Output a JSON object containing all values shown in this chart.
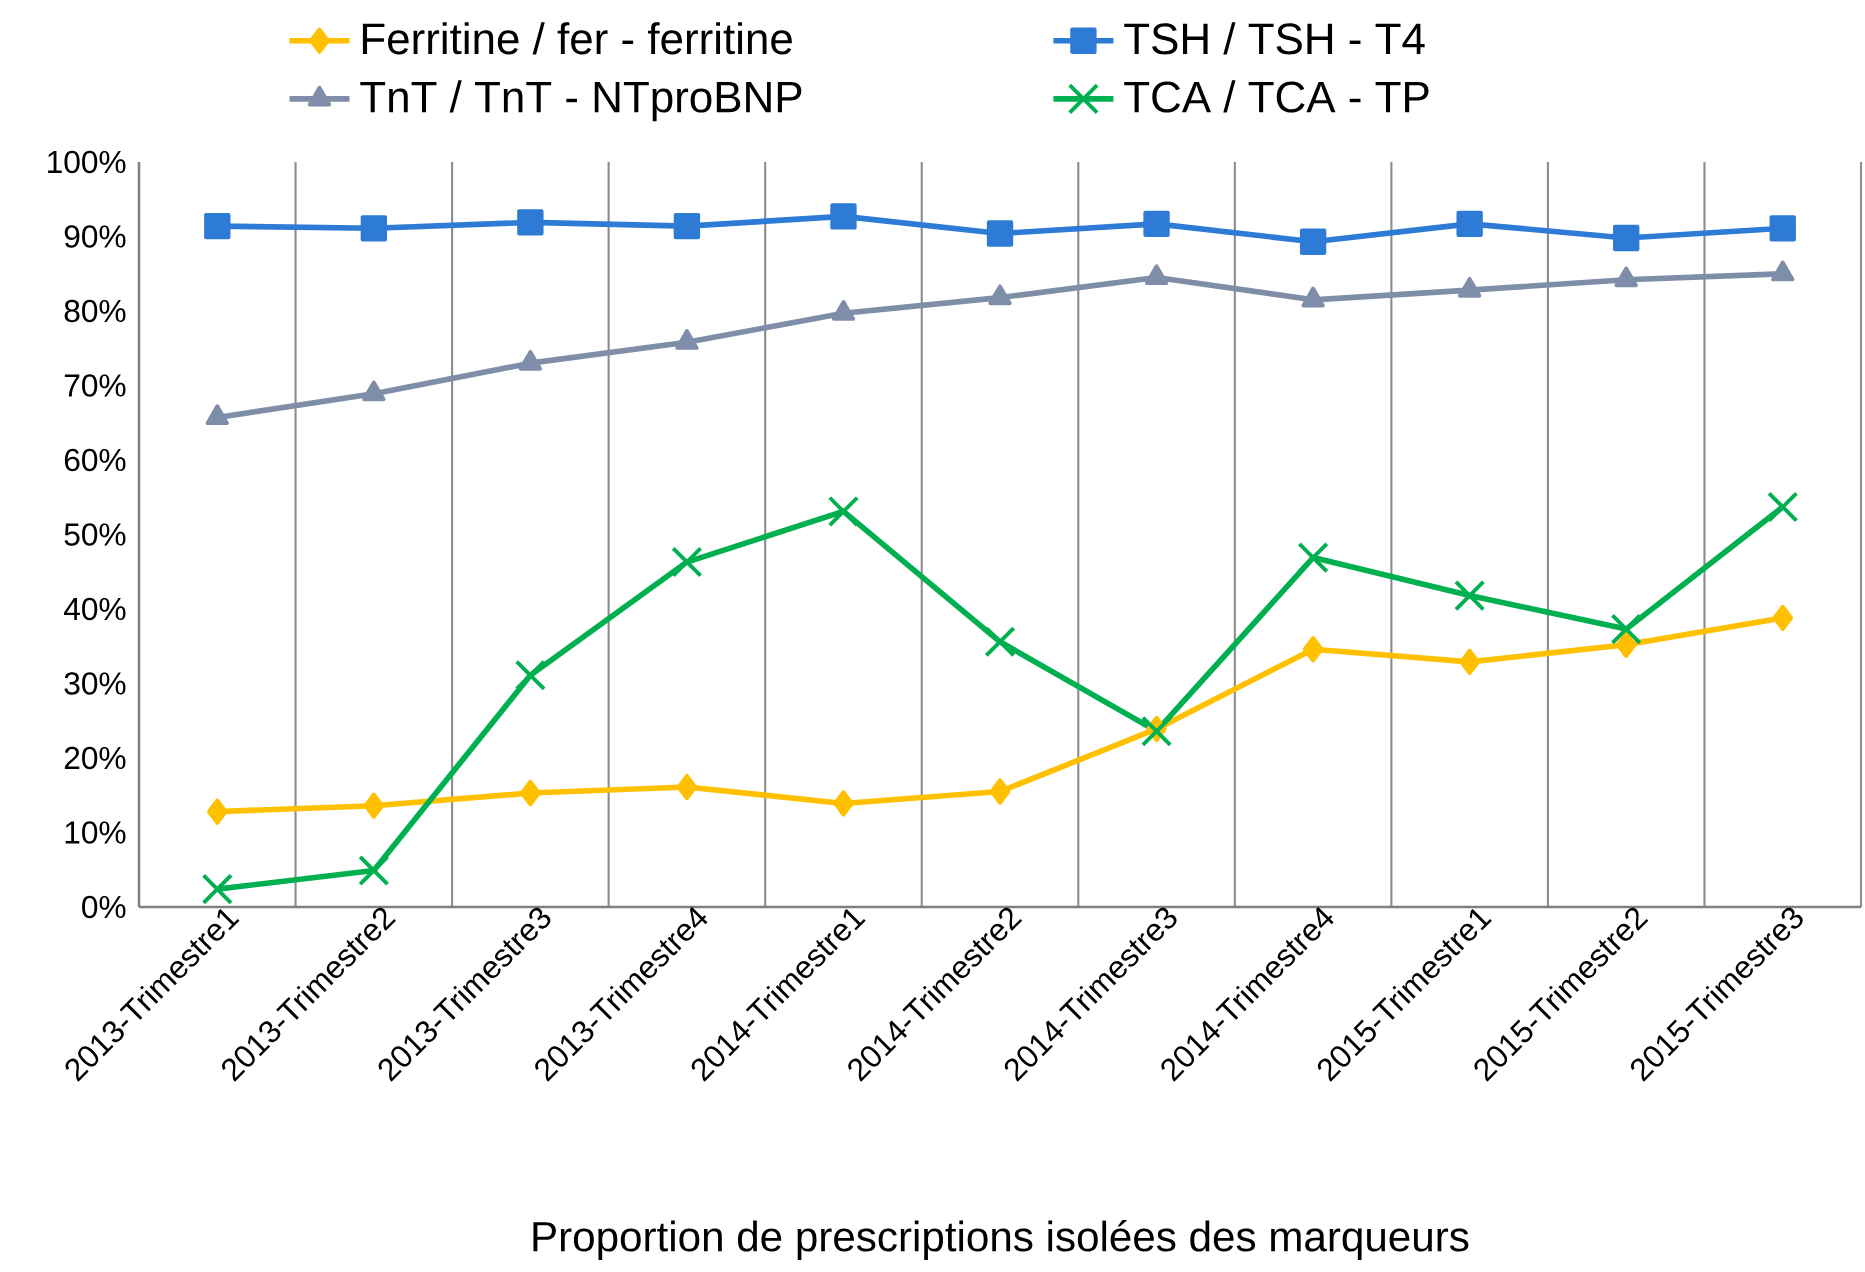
{
  "chart_data": {
    "type": "line",
    "xlabel": "Proportion de prescriptions isolées des marqueurs",
    "categories": [
      "2013-Trimestre1",
      "2013-Trimestre2",
      "2013-Trimestre3",
      "2013-Trimestre4",
      "2014-Trimestre1",
      "2014-Trimestre2",
      "2014-Trimestre3",
      "2014-Trimestre4",
      "2015-Trimestre1",
      "2015-Trimestre2",
      "2015-Trimestre3"
    ],
    "series": [
      {
        "name": "Ferritine / fer - ferritine",
        "color": "#ffc000",
        "marker": "diamond",
        "values": [
          12.8,
          13.6,
          15.3,
          16.1,
          13.9,
          15.5,
          23.9,
          34.6,
          32.9,
          35.2,
          38.8
        ]
      },
      {
        "name": "TSH / TSH - T4",
        "color": "#2e7bd6",
        "marker": "square",
        "values": [
          91.4,
          91.1,
          91.9,
          91.4,
          92.7,
          90.4,
          91.7,
          89.3,
          91.7,
          89.8,
          91.1
        ]
      },
      {
        "name": "TnT / TnT - NTproBNP",
        "color": "#7f8ea8",
        "marker": "triangle",
        "values": [
          65.7,
          68.9,
          73.0,
          75.8,
          79.7,
          81.8,
          84.5,
          81.5,
          82.8,
          84.2,
          85.0
        ]
      },
      {
        "name": "TCA / TCA - TP",
        "color": "#00b050",
        "marker": "cross",
        "values": [
          2.4,
          4.9,
          31.1,
          46.3,
          53.1,
          35.6,
          23.6,
          46.9,
          41.8,
          37.3,
          53.7
        ]
      }
    ],
    "ylim": [
      0,
      100
    ],
    "yticks": [
      {
        "value": 0,
        "label": "0%"
      },
      {
        "value": 10,
        "label": "10%"
      },
      {
        "value": 20,
        "label": "20%"
      },
      {
        "value": 30,
        "label": "30%"
      },
      {
        "value": 40,
        "label": "40%"
      },
      {
        "value": 50,
        "label": "50%"
      },
      {
        "value": 60,
        "label": "60%"
      },
      {
        "value": 70,
        "label": "70%"
      },
      {
        "value": 80,
        "label": "80%"
      },
      {
        "value": 90,
        "label": "90%"
      },
      {
        "value": 100,
        "label": "100%"
      }
    ],
    "grid": "x",
    "legend": "top",
    "line_style": "solid"
  }
}
